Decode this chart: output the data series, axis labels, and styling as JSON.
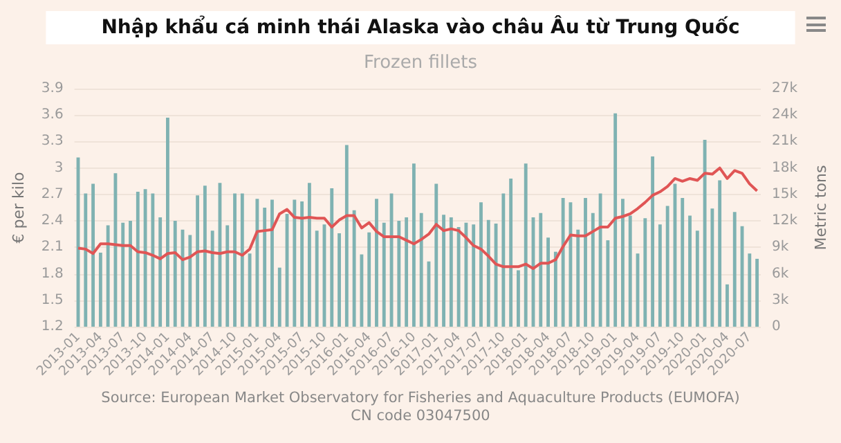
{
  "chart_data": {
    "type": "bar",
    "title": "Nhập khẩu cá minh thái Alaska vào châu Âu từ Trung Quốc",
    "subtitle": "Frozen fillets",
    "ylabel": "€ per kilo",
    "y2label": "Metric tons",
    "annotations": [
      "Source: European Market Observatory for Fisheries and Aquaculture Products (EUMOFA)",
      "CN code 03047500"
    ],
    "categories": [
      "2013-01",
      null,
      null,
      "2013-04",
      null,
      null,
      "2013-07",
      null,
      null,
      "2013-10",
      null,
      null,
      "2014-01",
      null,
      null,
      "2014-04",
      null,
      null,
      "2014-07",
      null,
      null,
      "2014-10",
      null,
      null,
      "2015-01",
      null,
      null,
      "2015-04",
      null,
      null,
      "2015-07",
      null,
      null,
      "2015-10",
      null,
      null,
      "2016-01",
      null,
      null,
      "2016-04",
      null,
      null,
      "2016-07",
      null,
      null,
      "2016-10",
      null,
      null,
      "2017-01",
      null,
      null,
      "2017-04",
      null,
      null,
      "2017-07",
      null,
      null,
      "2017-10",
      null,
      null,
      "2018-01",
      null,
      null,
      "2018-04",
      null,
      null,
      "2018-07",
      null,
      null,
      "2018-10",
      null,
      null,
      "2019-01",
      null,
      null,
      "2019-04",
      null,
      null,
      "2019-07",
      null,
      null,
      "2019-10",
      null,
      null,
      "2020-01",
      null,
      null,
      "2020-04",
      null,
      null,
      "2020-07",
      null
    ],
    "series": [
      {
        "axis": "y2",
        "color": "#7fb2b2",
        "values": [
          19200,
          15100,
          16200,
          8400,
          11500,
          17400,
          11800,
          12000,
          15300,
          15600,
          15100,
          12400,
          23700,
          12000,
          11000,
          10400,
          14900,
          16000,
          10900,
          16300,
          11500,
          15100,
          15100,
          8300,
          14500,
          13500,
          14400,
          6700,
          12800,
          14400,
          14200,
          16300,
          10900,
          11600,
          15700,
          10600,
          20600,
          13200,
          8200,
          10700,
          14500,
          11800,
          15100,
          12000,
          12400,
          18500,
          12900,
          7400,
          16200,
          12700,
          12400,
          11300,
          11800,
          11600,
          14100,
          12100,
          11700,
          15100,
          16800,
          6400,
          18500,
          12400,
          12900,
          10100,
          8500,
          14600,
          14100,
          11000,
          14600,
          12900,
          15100,
          9800,
          24200,
          14500,
          12600,
          8300,
          12300,
          19300,
          11600,
          13700,
          16200,
          14600,
          12600,
          10900,
          21200,
          13400,
          16600,
          4800,
          13000,
          11400,
          8300,
          7700
        ]
      },
      {
        "type": "line",
        "axis": "y",
        "color": "#e05555",
        "values": [
          2.09,
          2.08,
          2.03,
          2.14,
          2.14,
          2.13,
          2.12,
          2.12,
          2.05,
          2.04,
          2.01,
          1.97,
          2.03,
          2.04,
          1.96,
          1.99,
          2.05,
          2.06,
          2.04,
          2.03,
          2.05,
          2.05,
          2.01,
          2.08,
          2.28,
          2.29,
          2.3,
          2.48,
          2.53,
          2.44,
          2.43,
          2.44,
          2.43,
          2.43,
          2.33,
          2.41,
          2.46,
          2.46,
          2.32,
          2.38,
          2.28,
          2.22,
          2.22,
          2.22,
          2.18,
          2.14,
          2.19,
          2.25,
          2.36,
          2.29,
          2.31,
          2.29,
          2.21,
          2.12,
          2.08,
          2.0,
          1.91,
          1.88,
          1.88,
          1.88,
          1.91,
          1.86,
          1.92,
          1.92,
          1.96,
          2.11,
          2.24,
          2.23,
          2.23,
          2.28,
          2.33,
          2.33,
          2.43,
          2.45,
          2.48,
          2.54,
          2.61,
          2.69,
          2.73,
          2.79,
          2.88,
          2.85,
          2.88,
          2.86,
          2.94,
          2.93,
          3.0,
          2.88,
          2.97,
          2.94,
          2.82,
          2.74
        ]
      }
    ],
    "ylim": [
      1.2,
      3.9
    ],
    "yticks": [
      1.2,
      1.5,
      1.8,
      2.1,
      2.4,
      2.7,
      3,
      3.3,
      3.6,
      3.9
    ],
    "y2lim": [
      0,
      27000
    ],
    "y2ticks": [
      0,
      {
        "value": 3000,
        "label": "3k"
      },
      {
        "value": 6000,
        "label": "6k"
      },
      {
        "value": 9000,
        "label": "9k"
      },
      {
        "value": 12000,
        "label": "12k"
      },
      {
        "value": 15000,
        "label": "15k"
      },
      {
        "value": 18000,
        "label": "18k"
      },
      {
        "value": 21000,
        "label": "21k"
      },
      {
        "value": 24000,
        "label": "24k"
      },
      {
        "value": 27000,
        "label": "27k"
      }
    ],
    "grid": "y"
  }
}
